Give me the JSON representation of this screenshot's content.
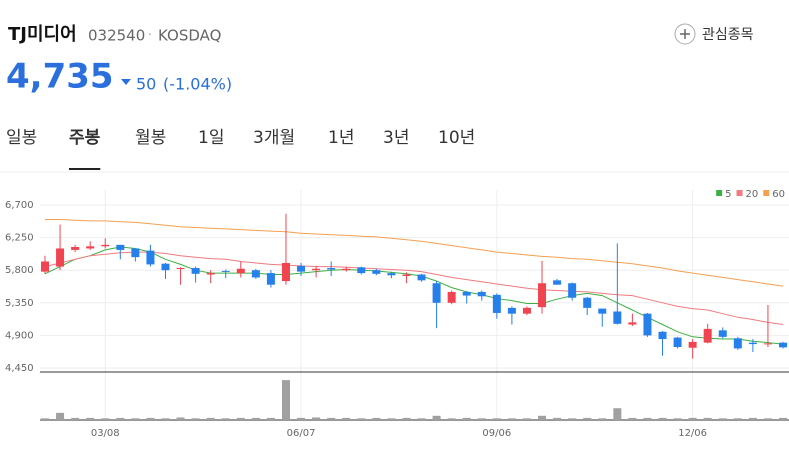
{
  "header": {
    "name": "TJ미디어",
    "code": "032540",
    "market": "KOSDAQ",
    "price": "4,735",
    "change": "50",
    "change_pct": "(-1.04%)",
    "watch": "관심종목"
  },
  "tabs": {
    "items": [
      "일봉",
      "주봉",
      "월봉",
      "1일",
      "3개월",
      "1년",
      "3년",
      "10년"
    ],
    "active": 1
  },
  "chart_data": {
    "type": "candlestick",
    "categories": [
      null,
      null,
      null,
      null,
      "03/08",
      null,
      null,
      null,
      null,
      null,
      null,
      null,
      null,
      null,
      null,
      null,
      null,
      "06/07",
      null,
      null,
      null,
      null,
      null,
      null,
      null,
      null,
      null,
      null,
      null,
      null,
      "09/06",
      null,
      null,
      null,
      null,
      null,
      null,
      null,
      null,
      null,
      null,
      null,
      null,
      "12/06",
      null,
      null,
      null,
      null,
      null,
      null
    ],
    "open": [
      5780,
      5850,
      6080,
      6100,
      6130,
      6150,
      6100,
      6070,
      5890,
      5820,
      5830,
      5740,
      5790,
      5760,
      5800,
      5760,
      5650,
      5860,
      5800,
      5830,
      5800,
      5840,
      5800,
      5760,
      5720,
      5740,
      5620,
      5350,
      5500,
      5500,
      5460,
      5280,
      5200,
      5290,
      5660,
      5620,
      5420,
      5270,
      5230,
      5050,
      5200,
      4950,
      4870,
      4730,
      4800,
      4970,
      4860,
      4800,
      4780,
      4800
    ],
    "high": [
      6000,
      6430,
      6150,
      6200,
      6240,
      6150,
      6100,
      6150,
      5900,
      5840,
      5850,
      5800,
      5810,
      5920,
      5820,
      5800,
      6580,
      5900,
      5860,
      5920,
      5850,
      5850,
      5820,
      5780,
      5770,
      5750,
      5650,
      5520,
      5510,
      5520,
      5480,
      5300,
      5300,
      5930,
      5680,
      5630,
      5430,
      5270,
      6170,
      5200,
      5210,
      4960,
      4880,
      4850,
      5060,
      5010,
      4880,
      4850,
      5320,
      4810
    ],
    "low": [
      5750,
      5800,
      6050,
      6080,
      6100,
      5950,
      5920,
      5850,
      5680,
      5600,
      5630,
      5620,
      5690,
      5700,
      5680,
      5560,
      5600,
      5720,
      5700,
      5720,
      5780,
      5740,
      5730,
      5690,
      5620,
      5640,
      5000,
      5330,
      5340,
      5380,
      5130,
      5050,
      5180,
      5200,
      5600,
      5380,
      5180,
      5020,
      5050,
      5030,
      4880,
      4620,
      4720,
      4580,
      4790,
      4860,
      4700,
      4670,
      4740,
      4720
    ],
    "close": [
      5920,
      6100,
      6120,
      6130,
      6150,
      6080,
      5980,
      5880,
      5800,
      5830,
      5750,
      5760,
      5780,
      5820,
      5700,
      5600,
      5900,
      5780,
      5820,
      5810,
      5820,
      5760,
      5750,
      5730,
      5740,
      5660,
      5350,
      5500,
      5450,
      5440,
      5210,
      5200,
      5280,
      5620,
      5600,
      5420,
      5280,
      5200,
      5060,
      5080,
      4900,
      4850,
      4740,
      4810,
      4990,
      4880,
      4720,
      4780,
      4790,
      4735
    ],
    "up_color": "#f04451",
    "down_color": "#2680eb",
    "series": [
      {
        "name": "5",
        "color": "#3cb043",
        "values": [
          5750,
          5850,
          5950,
          6000,
          6080,
          6120,
          6100,
          6050,
          5950,
          5880,
          5800,
          5760,
          5760,
          5760,
          5760,
          5740,
          5740,
          5760,
          5780,
          5800,
          5810,
          5800,
          5790,
          5770,
          5750,
          5720,
          5650,
          5560,
          5500,
          5460,
          5410,
          5380,
          5340,
          5340,
          5400,
          5450,
          5480,
          5450,
          5350,
          5250,
          5150,
          5050,
          4950,
          4880,
          4860,
          4850,
          4850,
          4820,
          4800,
          4780
        ]
      },
      {
        "name": "20",
        "color": "#f07a80",
        "values": [
          5850,
          5900,
          5950,
          6000,
          6020,
          6040,
          6050,
          6050,
          6030,
          6000,
          5980,
          5960,
          5950,
          5920,
          5900,
          5880,
          5870,
          5860,
          5850,
          5850,
          5840,
          5830,
          5820,
          5810,
          5800,
          5780,
          5740,
          5700,
          5670,
          5640,
          5610,
          5580,
          5550,
          5530,
          5520,
          5510,
          5500,
          5480,
          5460,
          5450,
          5400,
          5350,
          5300,
          5270,
          5250,
          5200,
          5150,
          5120,
          5080,
          5050
        ]
      },
      {
        "name": "60",
        "color": "#f5a050",
        "values": [
          6500,
          6500,
          6490,
          6480,
          6480,
          6470,
          6460,
          6440,
          6420,
          6400,
          6390,
          6380,
          6370,
          6360,
          6350,
          6340,
          6330,
          6310,
          6300,
          6290,
          6280,
          6270,
          6260,
          6240,
          6220,
          6200,
          6170,
          6140,
          6110,
          6080,
          6050,
          6030,
          6010,
          5990,
          5980,
          5960,
          5950,
          5930,
          5910,
          5890,
          5860,
          5830,
          5790,
          5760,
          5730,
          5700,
          5670,
          5640,
          5610,
          5580
        ]
      }
    ],
    "ylim": [
      4450,
      6700
    ],
    "yticks": [
      {
        "value": 4450,
        "label": "4,450"
      },
      {
        "value": 4900,
        "label": "4,900"
      },
      {
        "value": 5350,
        "label": "5,350"
      },
      {
        "value": 5800,
        "label": "5,800"
      },
      {
        "value": 6250,
        "label": "6,250"
      },
      {
        "value": 6700,
        "label": "6,700"
      }
    ],
    "grid": true,
    "legend": "top-right",
    "volume": [
      4,
      17,
      5,
      5,
      4,
      5,
      4,
      5,
      4,
      6,
      4,
      5,
      4,
      5,
      5,
      5,
      95,
      5,
      6,
      5,
      5,
      4,
      5,
      4,
      5,
      4,
      10,
      4,
      5,
      4,
      4,
      4,
      4,
      10,
      5,
      4,
      5,
      4,
      28,
      5,
      5,
      5,
      4,
      5,
      5,
      4,
      4,
      5,
      4,
      5
    ],
    "volume_ylim": [
      0,
      100
    ],
    "volume_color": "#a0a0a0"
  }
}
